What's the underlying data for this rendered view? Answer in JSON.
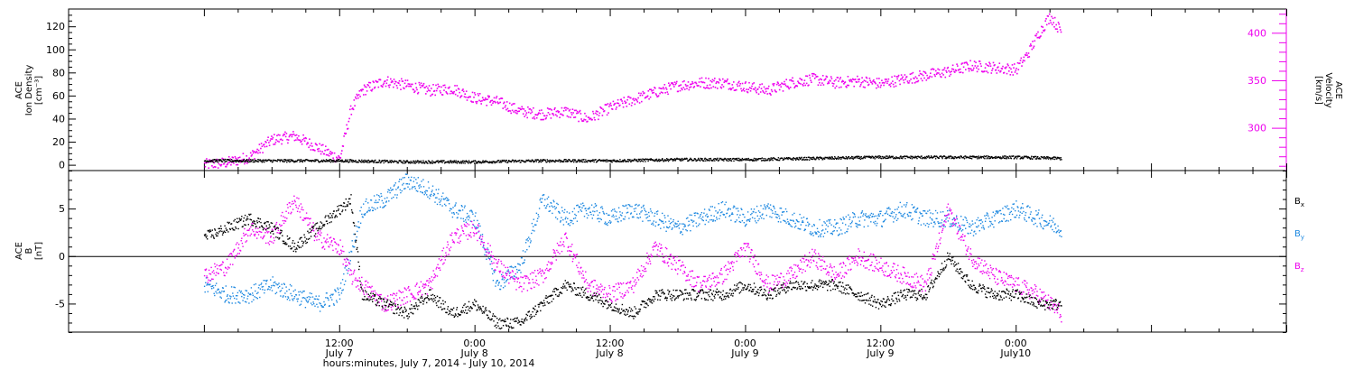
{
  "chart_data": [
    {
      "type": "scatter",
      "panel": "top",
      "ylabel_left": [
        "ACE",
        "Ion Density",
        "[cm⁻³]"
      ],
      "ylabel_right": [
        "ACE",
        "Velocity",
        "[km/s]"
      ],
      "ylim_left": [
        -5,
        135
      ],
      "ylim_right": [
        255,
        425
      ],
      "yticks_left": [
        "0",
        "20",
        "40",
        "60",
        "80",
        "100",
        "120"
      ],
      "yticks_right": [
        "300",
        "350",
        "400"
      ],
      "colors": {
        "density": "#000000",
        "velocity": "#ee00ee"
      },
      "series": [
        {
          "name": "Ion Density",
          "axis": "left",
          "hours": [
            0,
            6,
            12,
            18,
            24,
            30,
            36,
            42,
            48,
            54,
            60,
            66,
            72,
            76
          ],
          "values": [
            4,
            4,
            4,
            3,
            3,
            4,
            4,
            5,
            5,
            6,
            7,
            7,
            7,
            6
          ]
        },
        {
          "name": "Velocity",
          "axis": "right",
          "hours": [
            0,
            2,
            4,
            6,
            8,
            10,
            12,
            13,
            14,
            16,
            18,
            20,
            22,
            24,
            26,
            28,
            30,
            32,
            34,
            36,
            38,
            40,
            42,
            44,
            46,
            48,
            50,
            52,
            54,
            56,
            58,
            60,
            62,
            64,
            66,
            68,
            70,
            72,
            73,
            74,
            75,
            76
          ],
          "values": [
            262,
            264,
            270,
            288,
            292,
            280,
            268,
            320,
            340,
            350,
            345,
            340,
            342,
            332,
            328,
            318,
            315,
            318,
            310,
            322,
            330,
            338,
            345,
            348,
            348,
            344,
            340,
            348,
            352,
            348,
            350,
            347,
            352,
            356,
            360,
            366,
            364,
            362,
            378,
            400,
            418,
            402
          ]
        }
      ]
    },
    {
      "type": "scatter",
      "panel": "bottom",
      "ylabel": [
        "ACE",
        "B",
        "[nT]"
      ],
      "ylim": [
        -8,
        9
      ],
      "yticks": [
        "-5",
        "0",
        "5"
      ],
      "legend": [
        "Bx",
        "By",
        "Bz"
      ],
      "legend_sub": [
        "x",
        "y",
        "z"
      ],
      "legend_main": "B",
      "colors": {
        "Bx": "#000000",
        "By": "#1d88e0",
        "Bz": "#ee00ee"
      },
      "series": [
        {
          "name": "Bx",
          "hours": [
            0,
            2,
            4,
            6,
            8,
            10,
            12,
            13,
            14,
            16,
            18,
            20,
            22,
            24,
            26,
            28,
            30,
            32,
            34,
            36,
            38,
            40,
            42,
            44,
            46,
            48,
            50,
            52,
            54,
            56,
            58,
            60,
            62,
            64,
            66,
            68,
            70,
            72,
            74,
            76
          ],
          "values": [
            2,
            3,
            4,
            3,
            1,
            3,
            5,
            6,
            -4,
            -5,
            -6,
            -4,
            -6,
            -5,
            -7,
            -7,
            -5,
            -3,
            -4,
            -5,
            -6,
            -4,
            -4,
            -4,
            -4,
            -3,
            -4,
            -3,
            -3,
            -3,
            -4,
            -5,
            -4,
            -4,
            0,
            -3,
            -4,
            -4,
            -5,
            -5
          ]
        },
        {
          "name": "By",
          "hours": [
            0,
            2,
            4,
            6,
            8,
            10,
            12,
            14,
            16,
            18,
            20,
            22,
            24,
            26,
            28,
            30,
            32,
            34,
            36,
            38,
            40,
            42,
            44,
            46,
            48,
            50,
            52,
            54,
            56,
            58,
            60,
            62,
            64,
            66,
            68,
            70,
            72,
            74,
            76
          ],
          "values": [
            -3,
            -4,
            -4,
            -3,
            -4,
            -5,
            -4,
            5,
            6,
            8,
            7,
            5,
            4,
            -3,
            -1,
            6,
            4,
            5,
            4,
            5,
            4,
            3,
            4,
            5,
            4,
            5,
            4,
            3,
            3,
            4,
            4,
            5,
            4,
            4,
            3,
            4,
            5,
            4,
            3
          ]
        },
        {
          "name": "Bz",
          "hours": [
            0,
            2,
            4,
            6,
            8,
            10,
            12,
            13,
            14,
            16,
            18,
            20,
            22,
            24,
            26,
            28,
            30,
            32,
            34,
            36,
            38,
            40,
            42,
            44,
            46,
            48,
            50,
            52,
            54,
            56,
            58,
            60,
            62,
            64,
            66,
            68,
            70,
            72,
            74,
            76
          ],
          "values": [
            -2,
            -1,
            3,
            2,
            6,
            2,
            1,
            -2,
            -3,
            -5,
            -4,
            -3,
            2,
            3,
            -1,
            -3,
            -2,
            2,
            -3,
            -4,
            -3,
            1,
            -1,
            -3,
            -2,
            1,
            -3,
            -2,
            0,
            -2,
            0,
            -1,
            -2,
            -3,
            5,
            0,
            -2,
            -3,
            -4,
            -6
          ]
        }
      ]
    }
  ],
  "x_axis": {
    "ticks": [
      {
        "top": "12:00",
        "bottom": "July 7"
      },
      {
        "top": "0:00",
        "bottom": "July 8"
      },
      {
        "top": "12:00",
        "bottom": "July 8"
      },
      {
        "top": "0:00",
        "bottom": "July 9"
      },
      {
        "top": "12:00",
        "bottom": "July 9"
      },
      {
        "top": "0:00",
        "bottom": "July10"
      }
    ],
    "range_hours": [
      -12,
      96
    ],
    "tick_hours": [
      12,
      24,
      36,
      48,
      60,
      72
    ],
    "title": "hours:minutes,  July  7, 2014 - July 10, 2014"
  }
}
